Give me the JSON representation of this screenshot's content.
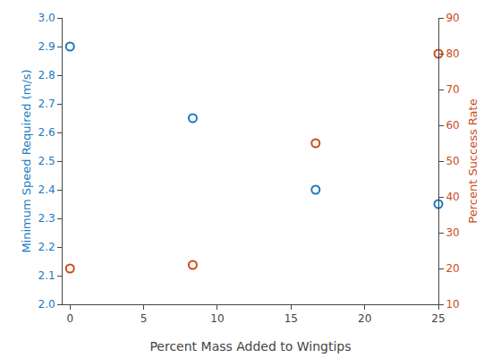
{
  "chart_data": {
    "type": "scatter",
    "xlabel": "Percent Mass Added to Wingtips",
    "ylabel": "Minimum Speed Required (m/s)",
    "y2label": "Percent Success Rate",
    "x": [
      0,
      8.33,
      16.67,
      25
    ],
    "series": [
      {
        "color": "#1a7abf",
        "marker": "open_circle",
        "values": [
          2.9,
          2.65,
          2.4,
          2.35
        ]
      },
      {
        "color": "#cc4b1a",
        "marker": "open_circle",
        "axis": "y2",
        "values": [
          20,
          21,
          55,
          80
        ]
      }
    ],
    "xlim": [
      -0.5,
      25
    ],
    "xticks": [
      0,
      5,
      10,
      15,
      20,
      25
    ],
    "ylim": [
      2.0,
      3.0
    ],
    "yticks": [
      {
        "value": 2.0,
        "label": "2.0"
      },
      2.1,
      2.2,
      2.3,
      2.4,
      2.5,
      2.6,
      2.7,
      2.8,
      2.9,
      {
        "value": 3.0,
        "label": "3.0"
      }
    ],
    "y2lim": [
      10,
      90
    ],
    "y2ticks": [
      10,
      20,
      30,
      40,
      50,
      60,
      70,
      80,
      90
    ],
    "grid": false
  }
}
